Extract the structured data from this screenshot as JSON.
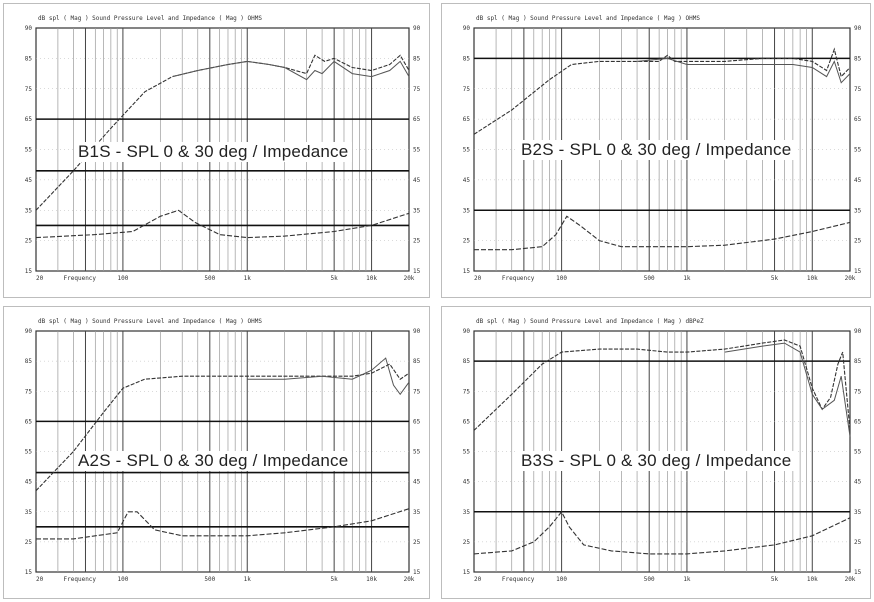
{
  "chart_data": [
    {
      "type": "line",
      "caption": "B1S - SPL 0 & 30 deg / Impedance",
      "header": "dB spl    ( Mag )    Sound Pressure Level and Impedance    ( Mag )    OHMS",
      "left_ticks": [
        "90",
        "85",
        "75",
        "65",
        "55",
        "45",
        "35",
        "25",
        "15"
      ],
      "right_ticks": [
        "90",
        "85",
        "75",
        "65",
        "55",
        "45",
        "35",
        "25",
        "15"
      ],
      "x_ticks": [
        "20",
        "Frequency",
        "100",
        "500",
        "1k",
        "5k",
        "10k",
        "20k"
      ],
      "x_tick_freqs": [
        20,
        45,
        100,
        500,
        1000,
        5000,
        10000,
        20000
      ],
      "xlim": [
        20,
        20000
      ],
      "ylim": [
        15,
        95
      ],
      "heavy_lines": [
        65,
        48,
        30
      ],
      "spl": [
        [
          20,
          35
        ],
        [
          40,
          48
        ],
        [
          80,
          62
        ],
        [
          150,
          74
        ],
        [
          250,
          79
        ],
        [
          400,
          81
        ],
        [
          700,
          83
        ],
        [
          1000,
          84
        ],
        [
          1500,
          83
        ],
        [
          2000,
          82
        ],
        [
          3000,
          80
        ],
        [
          3500,
          86
        ],
        [
          4200,
          84
        ],
        [
          5000,
          85
        ],
        [
          7000,
          82
        ],
        [
          10000,
          81
        ],
        [
          14000,
          83
        ],
        [
          17000,
          86
        ],
        [
          20000,
          81
        ]
      ],
      "spl_30": [
        [
          250,
          79
        ],
        [
          400,
          81
        ],
        [
          700,
          83
        ],
        [
          1000,
          84
        ],
        [
          1500,
          83
        ],
        [
          2000,
          82
        ],
        [
          3000,
          78
        ],
        [
          3500,
          81
        ],
        [
          4000,
          80
        ],
        [
          5000,
          84
        ],
        [
          7000,
          80
        ],
        [
          10000,
          79
        ],
        [
          14000,
          81
        ],
        [
          17000,
          84
        ],
        [
          20000,
          79
        ]
      ],
      "impedance": [
        [
          20,
          26
        ],
        [
          60,
          27
        ],
        [
          120,
          28
        ],
        [
          200,
          33
        ],
        [
          280,
          35
        ],
        [
          380,
          31
        ],
        [
          600,
          27
        ],
        [
          1000,
          26
        ],
        [
          2000,
          26.5
        ],
        [
          5000,
          28
        ],
        [
          10000,
          30
        ],
        [
          20000,
          34
        ]
      ]
    },
    {
      "type": "line",
      "caption": "B2S - SPL 0 & 30 deg / Impedance",
      "header": "dB spl    ( Mag )    Sound Pressure Level and Impedance    ( Mag )    OHMS",
      "left_ticks": [
        "90",
        "85",
        "75",
        "65",
        "55",
        "45",
        "35",
        "25",
        "15"
      ],
      "right_ticks": [
        "90",
        "85",
        "75",
        "65",
        "55",
        "45",
        "35",
        "25",
        "15"
      ],
      "x_ticks": [
        "20",
        "Frequency",
        "100",
        "500",
        "1k",
        "5k",
        "10k",
        "20k"
      ],
      "x_tick_freqs": [
        20,
        45,
        100,
        500,
        1000,
        5000,
        10000,
        20000
      ],
      "xlim": [
        20,
        20000
      ],
      "ylim": [
        15,
        95
      ],
      "heavy_lines": [
        85,
        35
      ],
      "spl": [
        [
          20,
          60
        ],
        [
          40,
          68
        ],
        [
          80,
          78
        ],
        [
          120,
          83
        ],
        [
          200,
          84
        ],
        [
          400,
          84
        ],
        [
          600,
          84
        ],
        [
          700,
          86
        ],
        [
          800,
          84
        ],
        [
          1000,
          84
        ],
        [
          2000,
          84
        ],
        [
          4000,
          85
        ],
        [
          7000,
          85
        ],
        [
          10000,
          84
        ],
        [
          13000,
          81
        ],
        [
          15000,
          88
        ],
        [
          17000,
          79
        ],
        [
          20000,
          82
        ]
      ],
      "spl_30": [
        [
          400,
          84
        ],
        [
          700,
          85
        ],
        [
          1000,
          83
        ],
        [
          2000,
          83
        ],
        [
          4000,
          83
        ],
        [
          7000,
          83
        ],
        [
          10000,
          82
        ],
        [
          13000,
          79
        ],
        [
          15000,
          84
        ],
        [
          17000,
          77
        ],
        [
          20000,
          80
        ]
      ],
      "impedance": [
        [
          20,
          22
        ],
        [
          40,
          22
        ],
        [
          70,
          23
        ],
        [
          90,
          27
        ],
        [
          110,
          33
        ],
        [
          140,
          30
        ],
        [
          200,
          25
        ],
        [
          300,
          23
        ],
        [
          600,
          23
        ],
        [
          1000,
          23
        ],
        [
          2000,
          23.5
        ],
        [
          5000,
          25.5
        ],
        [
          10000,
          28
        ],
        [
          20000,
          31
        ]
      ]
    },
    {
      "type": "line",
      "caption": "A2S - SPL 0 & 30 deg / Impedance",
      "header": "dB spl    ( Mag )    Sound Pressure Level and Impedance    ( Mag )    OHMS",
      "left_ticks": [
        "90",
        "85",
        "75",
        "65",
        "55",
        "45",
        "35",
        "25",
        "15"
      ],
      "right_ticks": [
        "90",
        "85",
        "75",
        "65",
        "55",
        "45",
        "35",
        "25",
        "15"
      ],
      "x_ticks": [
        "20",
        "Frequency",
        "100",
        "500",
        "1k",
        "5k",
        "10k",
        "20k"
      ],
      "x_tick_freqs": [
        20,
        45,
        100,
        500,
        1000,
        5000,
        10000,
        20000
      ],
      "xlim": [
        20,
        20000
      ],
      "ylim": [
        15,
        95
      ],
      "heavy_lines": [
        65,
        48,
        30
      ],
      "spl": [
        [
          20,
          42
        ],
        [
          40,
          55
        ],
        [
          70,
          68
        ],
        [
          100,
          76
        ],
        [
          150,
          79
        ],
        [
          300,
          80
        ],
        [
          600,
          80
        ],
        [
          1000,
          80
        ],
        [
          2000,
          80
        ],
        [
          4000,
          80
        ],
        [
          7000,
          80
        ],
        [
          10000,
          81
        ],
        [
          14000,
          84
        ],
        [
          17000,
          79
        ],
        [
          20000,
          81
        ]
      ],
      "spl_30": [
        [
          1000,
          79
        ],
        [
          2000,
          79
        ],
        [
          4000,
          80
        ],
        [
          7000,
          79
        ],
        [
          10000,
          82
        ],
        [
          13000,
          86
        ],
        [
          15000,
          77
        ],
        [
          17000,
          74
        ],
        [
          20000,
          78
        ]
      ],
      "impedance": [
        [
          20,
          26
        ],
        [
          40,
          26
        ],
        [
          60,
          27
        ],
        [
          90,
          28
        ],
        [
          110,
          35
        ],
        [
          130,
          35
        ],
        [
          180,
          29
        ],
        [
          300,
          27
        ],
        [
          700,
          27
        ],
        [
          1000,
          27
        ],
        [
          2000,
          28
        ],
        [
          5000,
          30
        ],
        [
          10000,
          32
        ],
        [
          20000,
          36
        ]
      ]
    },
    {
      "type": "line",
      "caption": "B3S - SPL 0 & 30 deg / Impedance",
      "header": "dB spl    ( Mag )    Sound Pressure Level and Impedance    ( Mag )    dBPeZ",
      "left_ticks": [
        "90",
        "85",
        "75",
        "65",
        "55",
        "45",
        "35",
        "25",
        "15"
      ],
      "right_ticks": [
        "90",
        "85",
        "75",
        "65",
        "55",
        "45",
        "35",
        "25",
        "15"
      ],
      "x_ticks": [
        "20",
        "Frequency",
        "100",
        "500",
        "1k",
        "5k",
        "10k",
        "20k"
      ],
      "x_tick_freqs": [
        20,
        45,
        100,
        500,
        1000,
        5000,
        10000,
        20000
      ],
      "xlim": [
        20,
        20000
      ],
      "ylim": [
        15,
        95
      ],
      "heavy_lines": [
        85,
        35
      ],
      "spl": [
        [
          20,
          62
        ],
        [
          40,
          74
        ],
        [
          70,
          84
        ],
        [
          100,
          88
        ],
        [
          200,
          89
        ],
        [
          400,
          89
        ],
        [
          700,
          88
        ],
        [
          1000,
          88
        ],
        [
          2000,
          89
        ],
        [
          4000,
          91
        ],
        [
          6000,
          92
        ],
        [
          8000,
          90
        ],
        [
          10000,
          76
        ],
        [
          12000,
          69
        ],
        [
          14000,
          73
        ],
        [
          16000,
          84
        ],
        [
          17500,
          88
        ],
        [
          20000,
          62
        ]
      ],
      "spl_30": [
        [
          2000,
          88
        ],
        [
          4000,
          90
        ],
        [
          6000,
          91
        ],
        [
          8000,
          88
        ],
        [
          10000,
          74
        ],
        [
          12000,
          69
        ],
        [
          15000,
          72
        ],
        [
          17000,
          80
        ],
        [
          20000,
          60
        ]
      ],
      "impedance": [
        [
          20,
          21
        ],
        [
          40,
          22
        ],
        [
          60,
          25
        ],
        [
          80,
          30
        ],
        [
          100,
          35
        ],
        [
          115,
          30
        ],
        [
          150,
          24
        ],
        [
          250,
          22
        ],
        [
          500,
          21
        ],
        [
          1000,
          21
        ],
        [
          2000,
          22
        ],
        [
          5000,
          24
        ],
        [
          10000,
          27
        ],
        [
          20000,
          33
        ]
      ]
    }
  ]
}
